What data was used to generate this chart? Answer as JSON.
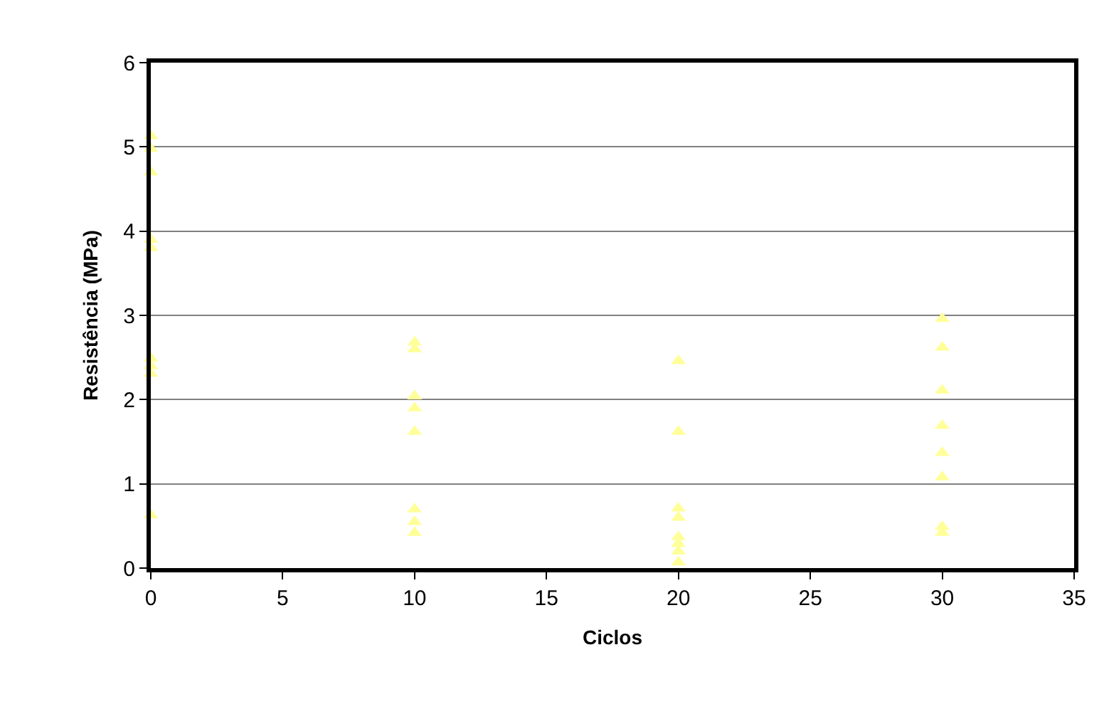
{
  "chart_data": {
    "type": "scatter",
    "xlabel": "Ciclos",
    "ylabel": "Resistência (MPa)",
    "x": [
      0,
      0,
      0,
      0,
      0,
      0,
      0,
      0,
      0,
      10,
      10,
      10,
      10,
      10,
      10,
      10,
      10,
      20,
      20,
      20,
      20,
      20,
      20,
      20,
      20,
      30,
      30,
      30,
      30,
      30,
      30,
      30,
      30
    ],
    "values": [
      5.13,
      4.98,
      4.7,
      3.9,
      3.8,
      2.49,
      2.4,
      2.31,
      0.63,
      2.68,
      2.6,
      2.04,
      1.9,
      1.62,
      0.7,
      0.55,
      0.42,
      2.46,
      1.62,
      0.71,
      0.6,
      0.37,
      0.29,
      0.2,
      0.07,
      2.96,
      2.62,
      2.11,
      1.69,
      1.37,
      1.08,
      0.49,
      0.42
    ],
    "color": "#ffff99",
    "marker": "triangle",
    "xlim": [
      0,
      35
    ],
    "xticks": [
      0,
      5,
      10,
      15,
      20,
      25,
      30,
      35
    ],
    "ylim": [
      0,
      6
    ],
    "yticks": [
      0,
      1,
      2,
      3,
      4,
      5,
      6
    ],
    "grid": "y"
  }
}
